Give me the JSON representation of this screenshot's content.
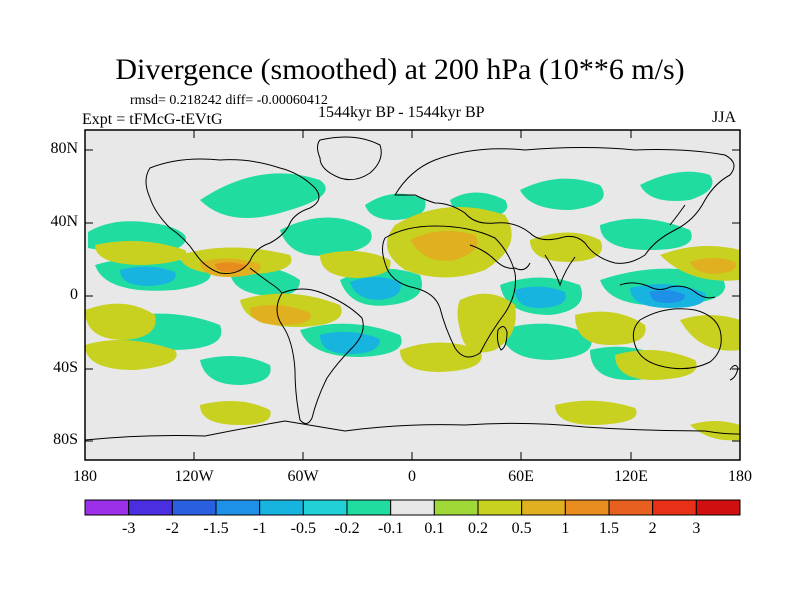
{
  "title": "Divergence (smoothed) at 200 hPa (10**6 m/s)",
  "stats": "rmsd= 0.218242 diff= -0.00060412",
  "experiment": "Expt = tFMcG-tEVtG",
  "period": "1544kyr BP - 1544kyr BP",
  "season": "JJA",
  "lat_labels": [
    "80N",
    "40N",
    "0",
    "40S",
    "80S"
  ],
  "lon_labels": [
    "180",
    "120W",
    "60W",
    "0",
    "60E",
    "120E",
    "180"
  ],
  "colorbar": {
    "labels": [
      "-3",
      "-2",
      "-1.5",
      "-1",
      "-0.5",
      "-0.2",
      "-0.1",
      "0.1",
      "0.2",
      "0.5",
      "1",
      "1.5",
      "2",
      "3"
    ],
    "colors": [
      "#9b30e8",
      "#4a2ee0",
      "#2a5fe0",
      "#1e90e8",
      "#18b4e0",
      "#22d0d8",
      "#20dca0",
      "#e8e8e8",
      "#a0d838",
      "#c8d020",
      "#e0b020",
      "#e88c20",
      "#e86020",
      "#e83018",
      "#d01010"
    ]
  },
  "colors": {
    "background": "#e8e8e8",
    "coast": "#000000"
  }
}
